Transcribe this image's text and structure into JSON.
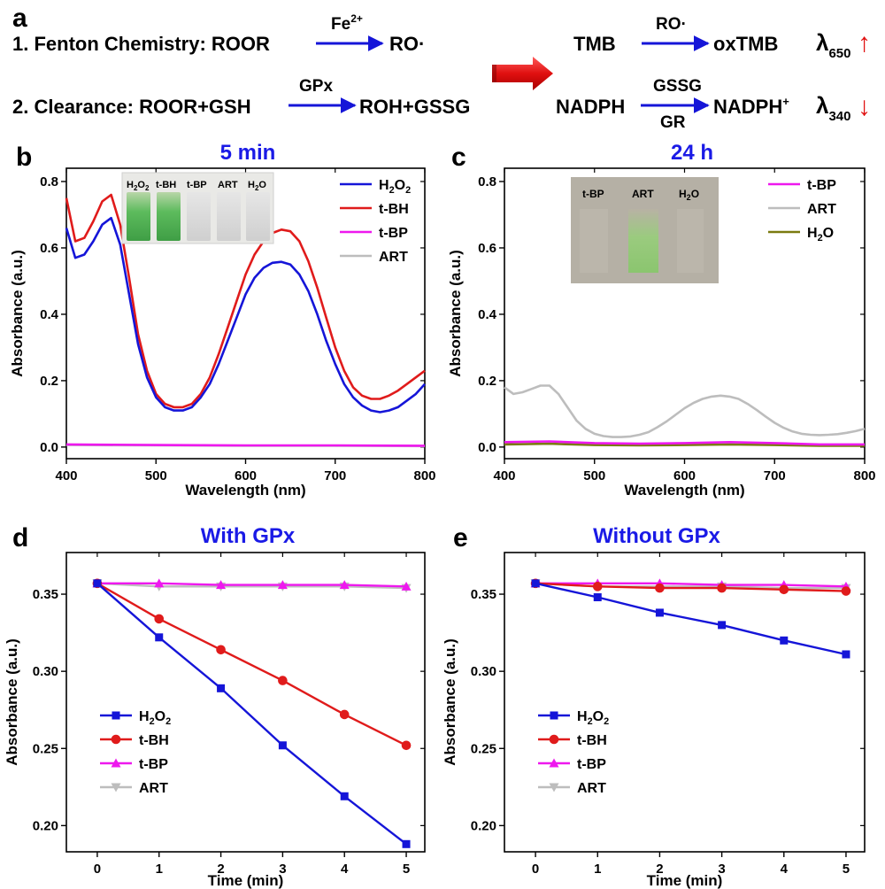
{
  "scheme": {
    "panel_letter": "a",
    "row1": {
      "prefix": "1. Fenton Chemistry: ROOR",
      "catalyst": "Fe",
      "catalyst_sup": "2+",
      "product": "RO·",
      "detect_reactant": "TMB",
      "detect_reagent": "RO·",
      "detect_product": "oxTMB",
      "lambda_symbol": "λ",
      "lambda_sub": "650",
      "trend": "↑"
    },
    "row2": {
      "prefix": "2. Clearance: ROOR+GSH",
      "enzyme": "GPx",
      "product": "ROH+GSSG",
      "detect_reactant": "NADPH",
      "detect_reagent_top": "GSSG",
      "detect_reagent_bottom": "GR",
      "detect_product": "NADPH",
      "detect_product_sup": "+",
      "lambda_symbol": "λ",
      "lambda_sub": "340",
      "trend": "↓"
    }
  },
  "colors": {
    "blue": "#1515d8",
    "red": "#e01b1b",
    "magenta": "#ee18ee",
    "gray": "#bdbdbd",
    "olive": "#7a7a10",
    "title_blue": "#1a1ae6",
    "arrow_red": "#e01010"
  },
  "chart_data": [
    {
      "id": "b",
      "panel_letter": "b",
      "type": "line",
      "title": "5 min",
      "xlabel": "Wavelength (nm)",
      "ylabel": "Absorbance (a.u.)",
      "xlim": [
        400,
        800
      ],
      "ylim": [
        -0.035,
        0.84
      ],
      "xticks": [
        400,
        500,
        600,
        700,
        800
      ],
      "yticks": [
        0.0,
        0.2,
        0.4,
        0.6,
        0.8
      ],
      "ytick_labels": [
        "0.0",
        "0.2",
        "0.4",
        "0.6",
        "0.8"
      ],
      "legend_position": "top-right",
      "inset_labels": [
        "H2O2",
        "t-BH",
        "t-BP",
        "ART",
        "H2O"
      ],
      "series": [
        {
          "name": "H2O2",
          "name_main": "H",
          "name_sub": "2",
          "name_main2": "O",
          "name_sub2": "2",
          "color_key": "blue",
          "marker": "none",
          "x": [
            400,
            410,
            420,
            430,
            440,
            450,
            460,
            470,
            480,
            490,
            500,
            510,
            520,
            530,
            540,
            550,
            560,
            570,
            580,
            590,
            600,
            610,
            620,
            630,
            640,
            650,
            660,
            670,
            680,
            690,
            700,
            710,
            720,
            730,
            740,
            750,
            760,
            770,
            780,
            790,
            800
          ],
          "values": [
            0.66,
            0.57,
            0.58,
            0.62,
            0.67,
            0.69,
            0.61,
            0.46,
            0.31,
            0.21,
            0.15,
            0.12,
            0.11,
            0.11,
            0.12,
            0.15,
            0.19,
            0.25,
            0.32,
            0.39,
            0.46,
            0.51,
            0.54,
            0.555,
            0.558,
            0.55,
            0.52,
            0.47,
            0.4,
            0.32,
            0.25,
            0.19,
            0.15,
            0.125,
            0.11,
            0.105,
            0.11,
            0.12,
            0.14,
            0.16,
            0.19
          ]
        },
        {
          "name": "t-BH",
          "color_key": "red",
          "marker": "none",
          "x": [
            400,
            410,
            420,
            430,
            440,
            450,
            460,
            470,
            480,
            490,
            500,
            510,
            520,
            530,
            540,
            550,
            560,
            570,
            580,
            590,
            600,
            610,
            620,
            630,
            640,
            650,
            660,
            670,
            680,
            690,
            700,
            710,
            720,
            730,
            740,
            750,
            760,
            770,
            780,
            790,
            800
          ],
          "values": [
            0.75,
            0.62,
            0.63,
            0.68,
            0.74,
            0.76,
            0.67,
            0.51,
            0.34,
            0.23,
            0.16,
            0.13,
            0.12,
            0.12,
            0.13,
            0.16,
            0.21,
            0.28,
            0.36,
            0.44,
            0.52,
            0.58,
            0.62,
            0.645,
            0.655,
            0.65,
            0.62,
            0.56,
            0.48,
            0.39,
            0.3,
            0.23,
            0.18,
            0.155,
            0.145,
            0.145,
            0.155,
            0.17,
            0.19,
            0.21,
            0.23
          ]
        },
        {
          "name": "t-BP",
          "color_key": "magenta",
          "marker": "none",
          "x": [
            400,
            500,
            600,
            700,
            800
          ],
          "values": [
            0.008,
            0.006,
            0.005,
            0.005,
            0.004
          ]
        },
        {
          "name": "ART",
          "color_key": "gray",
          "marker": "none",
          "x": [
            400,
            500,
            600,
            700,
            800
          ],
          "values": [
            0.006,
            0.005,
            0.004,
            0.004,
            0.003
          ]
        }
      ]
    },
    {
      "id": "c",
      "panel_letter": "c",
      "type": "line",
      "title": "24 h",
      "xlabel": "Wavelength (nm)",
      "ylabel": "Absorbance (a.u.)",
      "xlim": [
        400,
        800
      ],
      "ylim": [
        -0.035,
        0.84
      ],
      "xticks": [
        400,
        500,
        600,
        700,
        800
      ],
      "yticks": [
        0.0,
        0.2,
        0.4,
        0.6,
        0.8
      ],
      "ytick_labels": [
        "0.0",
        "0.2",
        "0.4",
        "0.6",
        "0.8"
      ],
      "legend_position": "top-right",
      "inset_labels": [
        "t-BP",
        "ART",
        "H2O"
      ],
      "series": [
        {
          "name": "t-BP",
          "color_key": "magenta",
          "marker": "none",
          "x": [
            400,
            450,
            500,
            550,
            600,
            650,
            700,
            750,
            800
          ],
          "values": [
            0.015,
            0.017,
            0.012,
            0.01,
            0.012,
            0.015,
            0.012,
            0.008,
            0.008
          ]
        },
        {
          "name": "ART",
          "color_key": "gray",
          "marker": "none",
          "x": [
            400,
            410,
            420,
            430,
            440,
            450,
            460,
            470,
            480,
            490,
            500,
            510,
            520,
            530,
            540,
            550,
            560,
            570,
            580,
            590,
            600,
            610,
            620,
            630,
            640,
            650,
            660,
            670,
            680,
            690,
            700,
            710,
            720,
            730,
            740,
            750,
            760,
            770,
            780,
            790,
            800
          ],
          "values": [
            0.18,
            0.16,
            0.165,
            0.175,
            0.185,
            0.185,
            0.16,
            0.12,
            0.08,
            0.055,
            0.04,
            0.033,
            0.03,
            0.03,
            0.032,
            0.037,
            0.045,
            0.06,
            0.077,
            0.097,
            0.117,
            0.133,
            0.145,
            0.152,
            0.155,
            0.152,
            0.145,
            0.13,
            0.112,
            0.092,
            0.073,
            0.058,
            0.047,
            0.04,
            0.037,
            0.036,
            0.037,
            0.039,
            0.043,
            0.048,
            0.055
          ]
        },
        {
          "name": "H2O",
          "name_main": "H",
          "name_sub": "2",
          "name_main2": "O",
          "color_key": "olive",
          "marker": "none",
          "x": [
            400,
            450,
            500,
            550,
            600,
            650,
            700,
            750,
            800
          ],
          "values": [
            0.008,
            0.01,
            0.006,
            0.005,
            0.006,
            0.008,
            0.006,
            0.004,
            0.004
          ]
        }
      ]
    },
    {
      "id": "d",
      "panel_letter": "d",
      "type": "line",
      "title": "With GPx",
      "xlabel": "Time (min)",
      "ylabel": "Absorbance (a.u.)",
      "xlim": [
        -0.5,
        5.3
      ],
      "ylim": [
        0.183,
        0.377
      ],
      "xticks": [
        0,
        1,
        2,
        3,
        4,
        5
      ],
      "yticks": [
        0.2,
        0.25,
        0.3,
        0.35
      ],
      "ytick_labels": [
        "0.20",
        "0.25",
        "0.30",
        "0.35"
      ],
      "legend_position": "bottom-left",
      "series": [
        {
          "name": "H2O2",
          "name_main": "H",
          "name_sub": "2",
          "name_main2": "O",
          "name_sub2": "2",
          "color_key": "blue",
          "marker": "square",
          "x": [
            0,
            1,
            2,
            3,
            4,
            5
          ],
          "values": [
            0.357,
            0.322,
            0.289,
            0.252,
            0.219,
            0.188
          ]
        },
        {
          "name": "t-BH",
          "color_key": "red",
          "marker": "circle",
          "x": [
            0,
            1,
            2,
            3,
            4,
            5
          ],
          "values": [
            0.357,
            0.334,
            0.314,
            0.294,
            0.272,
            0.252
          ]
        },
        {
          "name": "t-BP",
          "color_key": "magenta",
          "marker": "triangle-up",
          "x": [
            0,
            1,
            2,
            3,
            4,
            5
          ],
          "values": [
            0.357,
            0.357,
            0.356,
            0.356,
            0.356,
            0.355
          ]
        },
        {
          "name": "ART",
          "color_key": "gray",
          "marker": "triangle-down",
          "x": [
            0,
            1,
            2,
            3,
            4,
            5
          ],
          "values": [
            0.357,
            0.355,
            0.355,
            0.355,
            0.355,
            0.354
          ]
        }
      ]
    },
    {
      "id": "e",
      "panel_letter": "e",
      "type": "line",
      "title": "Without GPx",
      "xlabel": "Time (min)",
      "ylabel": "Absorbance (a.u.)",
      "xlim": [
        -0.5,
        5.3
      ],
      "ylim": [
        0.183,
        0.377
      ],
      "xticks": [
        0,
        1,
        2,
        3,
        4,
        5
      ],
      "yticks": [
        0.2,
        0.25,
        0.3,
        0.35
      ],
      "ytick_labels": [
        "0.20",
        "0.25",
        "0.30",
        "0.35"
      ],
      "legend_position": "bottom-left",
      "series": [
        {
          "name": "H2O2",
          "name_main": "H",
          "name_sub": "2",
          "name_main2": "O",
          "name_sub2": "2",
          "color_key": "blue",
          "marker": "square",
          "x": [
            0,
            1,
            2,
            3,
            4,
            5
          ],
          "values": [
            0.357,
            0.348,
            0.338,
            0.33,
            0.32,
            0.311
          ]
        },
        {
          "name": "t-BH",
          "color_key": "red",
          "marker": "circle",
          "x": [
            0,
            1,
            2,
            3,
            4,
            5
          ],
          "values": [
            0.357,
            0.355,
            0.354,
            0.354,
            0.353,
            0.352
          ]
        },
        {
          "name": "t-BP",
          "color_key": "magenta",
          "marker": "triangle-up",
          "x": [
            0,
            1,
            2,
            3,
            4,
            5
          ],
          "values": [
            0.357,
            0.357,
            0.357,
            0.356,
            0.356,
            0.355
          ]
        },
        {
          "name": "ART",
          "color_key": "gray",
          "marker": "triangle-down",
          "x": [
            0,
            1,
            2,
            3,
            4,
            5
          ],
          "values": [
            0.357,
            0.355,
            0.355,
            0.355,
            0.354,
            0.354
          ]
        }
      ]
    }
  ]
}
